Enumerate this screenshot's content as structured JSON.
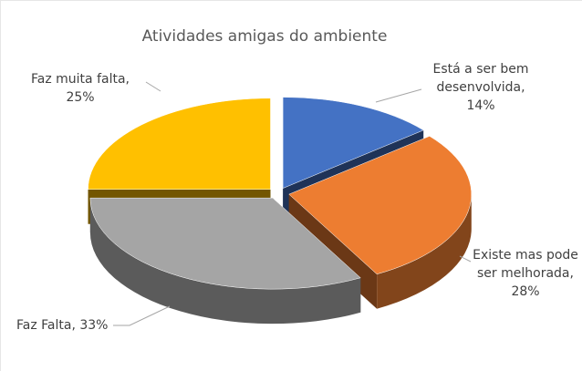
{
  "chart_data": {
    "type": "pie3d",
    "title": "Atividades amigas do ambiente",
    "categories": [
      "Está a ser bem desenvolvida",
      "Existe mas pode ser melhorada",
      "Faz Falta",
      "Faz muita falta"
    ],
    "values": [
      14,
      28,
      33,
      25
    ],
    "value_labels": [
      "14%",
      "28%",
      "33%",
      "25%"
    ],
    "label_separator": ",",
    "colors": [
      "#4472c4",
      "#ed7d31",
      "#a5a5a5",
      "#ffc000"
    ]
  }
}
